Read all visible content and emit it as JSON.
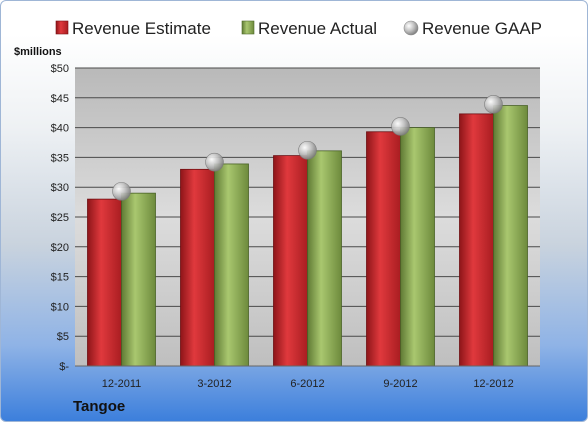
{
  "chart_data": {
    "type": "bar",
    "title": "",
    "ylabel": "$millions",
    "xlabel": "",
    "company": "Tangoe",
    "categories": [
      "12-2011",
      "3-2012",
      "6-2012",
      "9-2012",
      "12-2012"
    ],
    "series": [
      {
        "name": "Revenue Estimate",
        "type": "bar",
        "color": "#c8282c",
        "values": [
          28.0,
          33.0,
          35.3,
          39.3,
          42.3
        ]
      },
      {
        "name": "Revenue Actual",
        "type": "bar",
        "color": "#8fad59",
        "values": [
          29.0,
          33.9,
          36.1,
          40.0,
          43.7
        ]
      },
      {
        "name": "Revenue GAAP",
        "type": "scatter",
        "color": "#b8b8b8",
        "values": [
          29.3,
          34.2,
          36.2,
          40.2,
          43.9
        ]
      }
    ],
    "ylim": [
      0,
      50
    ],
    "yticks": [
      0,
      5,
      10,
      15,
      20,
      25,
      30,
      35,
      40,
      45,
      50
    ],
    "ytick_labels": [
      "$-",
      "$5",
      "$10",
      "$15",
      "$20",
      "$25",
      "$30",
      "$35",
      "$40",
      "$45",
      "$50"
    ],
    "grid": true,
    "legend_position": "top"
  }
}
